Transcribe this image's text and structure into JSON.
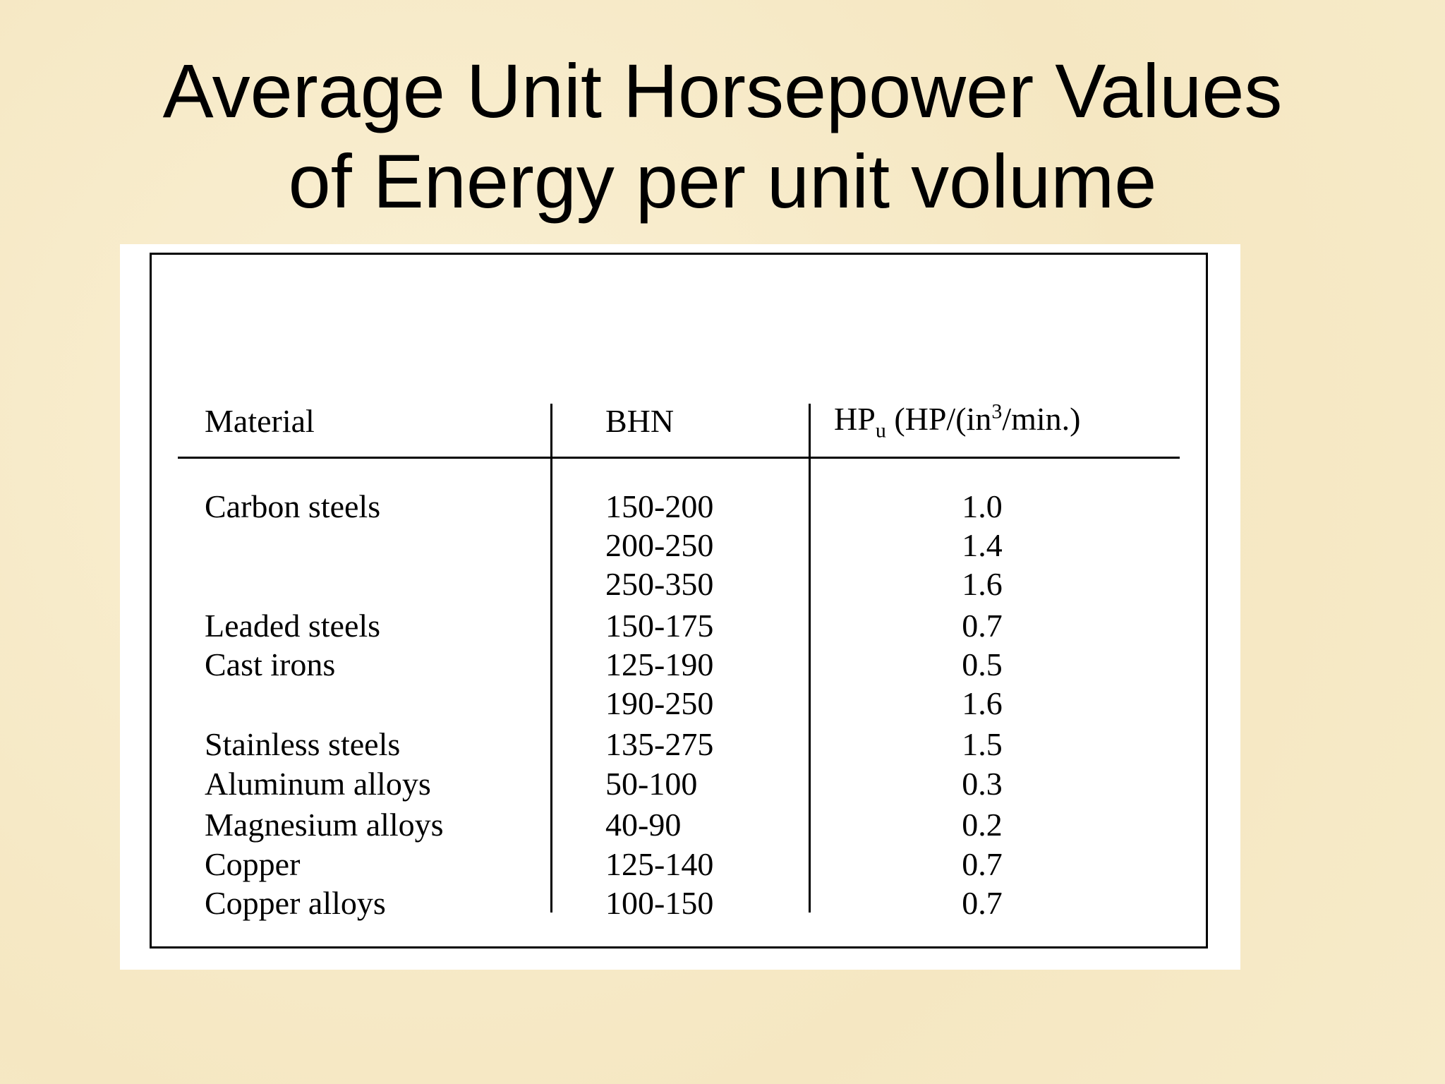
{
  "title": {
    "line1": "Average Unit Horsepower Values",
    "line2": "of Energy per unit volume"
  },
  "table": {
    "header": {
      "material": "Material",
      "bhn": "BHN",
      "hp": {
        "main": "HP",
        "sub": "u",
        "mid": " (HP/(in",
        "sup": "3",
        "end": "/min.)"
      }
    },
    "rows": [
      [
        "Carbon steels",
        "150-200",
        "1.0"
      ],
      [
        null,
        "200-250",
        "1.4"
      ],
      [
        null,
        "250-350",
        "1.6"
      ],
      [
        "Leaded steels",
        "150-175",
        "0.7"
      ],
      [
        "Cast irons",
        "125-190",
        "0.5"
      ],
      [
        null,
        "190-250",
        "1.6"
      ],
      [
        "Stainless steels",
        "135-275",
        "1.5"
      ],
      [
        "Aluminum alloys",
        "50-100",
        "0.3"
      ],
      [
        "Magnesium alloys",
        "40-90",
        "0.2"
      ],
      [
        "Copper",
        "125-140",
        "0.7"
      ],
      [
        "Copper alloys",
        "100-150",
        "0.7"
      ]
    ]
  }
}
